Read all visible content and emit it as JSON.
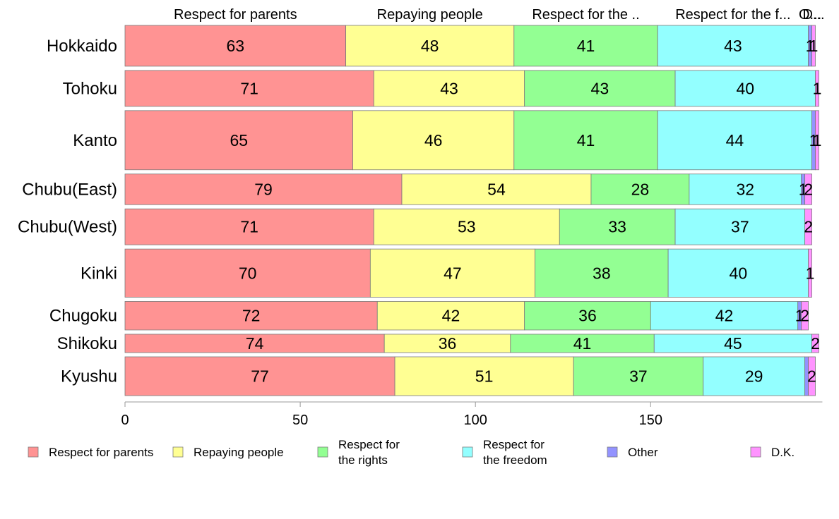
{
  "chart_data": {
    "type": "bar",
    "orientation": "horizontal",
    "stacked": true,
    "categories": [
      "Hokkaido",
      "Tohoku",
      "Kanto",
      "Chubu(East)",
      "Chubu(West)",
      "Kinki",
      "Chugoku",
      "Shikoku",
      "Kyushu"
    ],
    "series": [
      {
        "name": "Respect for parents",
        "top_label": "Respect for parents",
        "color": "#ff9393",
        "values": [
          63,
          71,
          65,
          79,
          71,
          70,
          72,
          74,
          77
        ]
      },
      {
        "name": "Repaying people",
        "top_label": "Repaying people",
        "color": "#ffff93",
        "values": [
          48,
          43,
          46,
          54,
          53,
          47,
          42,
          36,
          51
        ]
      },
      {
        "name": "Respect for the rights",
        "top_label": "Respect for the ..",
        "color": "#93ff93",
        "values": [
          41,
          43,
          41,
          28,
          33,
          38,
          36,
          41,
          37
        ]
      },
      {
        "name": "Respect for the freedom",
        "top_label": "Respect for the f...",
        "color": "#93ffff",
        "values": [
          43,
          40,
          44,
          32,
          37,
          40,
          42,
          45,
          29
        ]
      },
      {
        "name": "Other",
        "top_label": "O...",
        "color": "#9393ff",
        "values": [
          1,
          0,
          1,
          1,
          0,
          0,
          1,
          0,
          1
        ]
      },
      {
        "name": "D.K.",
        "top_label": "D...",
        "color": "#ff93ff",
        "values": [
          1,
          1,
          1,
          2,
          2,
          1,
          2,
          2,
          2
        ]
      }
    ],
    "value_labels": [
      [
        "63",
        "48",
        "41",
        "43",
        "1",
        "1"
      ],
      [
        "71",
        "43",
        "43",
        "40",
        "",
        "1"
      ],
      [
        "65",
        "46",
        "41",
        "44",
        "1",
        "1"
      ],
      [
        "79",
        "54",
        "28",
        "32",
        "1",
        "2"
      ],
      [
        "71",
        "53",
        "33",
        "37",
        "",
        "2"
      ],
      [
        "70",
        "47",
        "38",
        "40",
        "",
        "1"
      ],
      [
        "72",
        "42",
        "36",
        "42",
        "1",
        "2"
      ],
      [
        "74",
        "36",
        "41",
        "45",
        "",
        "2"
      ],
      [
        "77",
        "51",
        "37",
        "29",
        "",
        "2"
      ]
    ],
    "category_weights": [
      100,
      88,
      145,
      75,
      88,
      118,
      70,
      45,
      95
    ],
    "x_ticks": [
      0,
      50,
      100,
      150
    ],
    "xlim": [
      0,
      199
    ],
    "legend": {
      "position": "bottom",
      "entries": [
        {
          "lines": [
            "Respect for parents"
          ],
          "color": "#ff9393"
        },
        {
          "lines": [
            "Repaying people"
          ],
          "color": "#ffff93"
        },
        {
          "lines": [
            "Respect for",
            "the rights"
          ],
          "color": "#93ff93"
        },
        {
          "lines": [
            "Respect for",
            "the freedom"
          ],
          "color": "#93ffff"
        },
        {
          "lines": [
            "Other"
          ],
          "color": "#9393ff"
        },
        {
          "lines": [
            "D.K."
          ],
          "color": "#ff93ff"
        }
      ]
    },
    "title": "",
    "xlabel": "",
    "ylabel": ""
  }
}
